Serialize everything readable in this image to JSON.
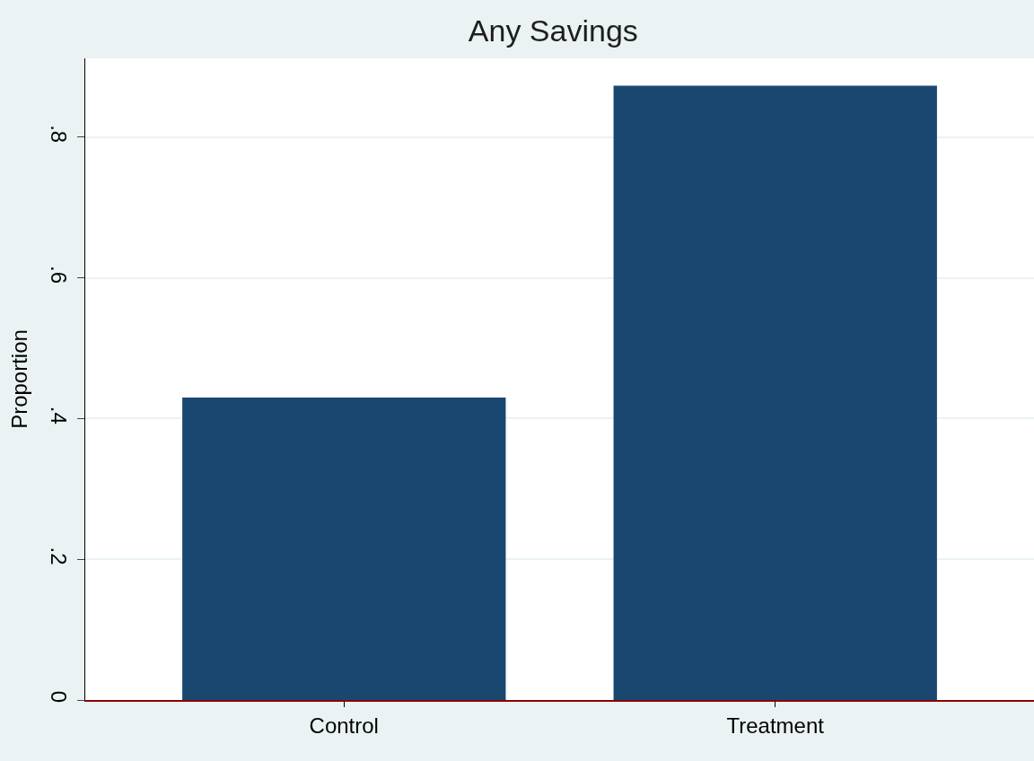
{
  "chart_data": {
    "type": "bar",
    "title": "Any Savings",
    "ylabel": "Proportion",
    "categories": [
      "Control",
      "Treatment"
    ],
    "values": [
      0.43,
      0.873
    ],
    "color": "#1a476f",
    "ylim": [
      0,
      0.912
    ],
    "yticks": [
      0,
      {
        "value": 0.2,
        "label": ".2"
      },
      {
        "value": 0.4,
        "label": ".4"
      },
      {
        "value": 0.6,
        "label": ".6"
      },
      {
        "value": 0.8,
        "label": ".8"
      }
    ],
    "grid": "y"
  }
}
